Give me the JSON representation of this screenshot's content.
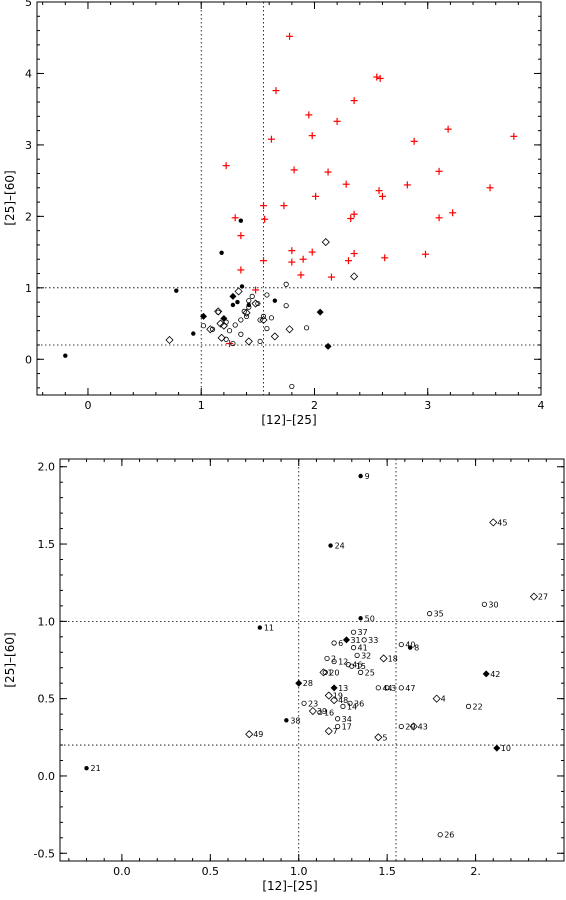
{
  "chart_data": [
    {
      "type": "scatter",
      "title": "",
      "xlabel": "[12]–[25]",
      "ylabel": "[25]–[60]",
      "xlim": [
        -0.45,
        4.0
      ],
      "ylim": [
        -0.5,
        5.0
      ],
      "xticks": [
        0,
        1,
        2,
        3,
        4
      ],
      "yticks": [
        0,
        1,
        2,
        3,
        4,
        5
      ],
      "grid": false,
      "reference_lines": {
        "vertical": [
          1.0,
          1.55
        ],
        "horizontal": [
          1.0,
          0.2
        ]
      },
      "series": [
        {
          "marker": "plus",
          "color": "#ff0000",
          "points": [
            [
              1.78,
              4.52
            ],
            [
              2.55,
              3.95
            ],
            [
              2.58,
              3.93
            ],
            [
              1.66,
              3.76
            ],
            [
              2.35,
              3.62
            ],
            [
              1.95,
              3.42
            ],
            [
              1.98,
              3.13
            ],
            [
              3.18,
              3.22
            ],
            [
              3.76,
              3.12
            ],
            [
              2.2,
              3.33
            ],
            [
              1.62,
              3.08
            ],
            [
              2.88,
              3.05
            ],
            [
              1.82,
              2.65
            ],
            [
              2.28,
              2.45
            ],
            [
              3.1,
              2.63
            ],
            [
              1.22,
              2.71
            ],
            [
              2.12,
              2.62
            ],
            [
              2.82,
              2.44
            ],
            [
              1.55,
              2.15
            ],
            [
              2.57,
              2.36
            ],
            [
              1.73,
              2.15
            ],
            [
              2.01,
              2.28
            ],
            [
              2.6,
              2.28
            ],
            [
              3.55,
              2.4
            ],
            [
              1.3,
              1.98
            ],
            [
              1.56,
              1.96
            ],
            [
              2.35,
              2.03
            ],
            [
              2.32,
              1.97
            ],
            [
              3.1,
              1.98
            ],
            [
              3.22,
              2.05
            ],
            [
              1.35,
              1.73
            ],
            [
              1.8,
              1.52
            ],
            [
              1.98,
              1.5
            ],
            [
              2.35,
              1.48
            ],
            [
              1.9,
              1.4
            ],
            [
              2.62,
              1.42
            ],
            [
              2.3,
              1.38
            ],
            [
              2.98,
              1.47
            ],
            [
              1.55,
              1.38
            ],
            [
              1.8,
              1.36
            ],
            [
              1.35,
              1.25
            ],
            [
              1.88,
              1.18
            ],
            [
              1.48,
              0.97
            ],
            [
              2.15,
              1.15
            ],
            [
              1.25,
              0.22
            ]
          ]
        },
        {
          "marker": "filled-circle",
          "color": "#000000",
          "points": [
            [
              -0.2,
              0.05
            ],
            [
              0.78,
              0.96
            ],
            [
              0.93,
              0.36
            ],
            [
              1.18,
              1.49
            ],
            [
              1.35,
              1.94
            ],
            [
              1.36,
              1.02
            ],
            [
              1.28,
              0.76
            ],
            [
              1.32,
              0.8
            ],
            [
              1.42,
              0.76
            ],
            [
              1.65,
              0.82
            ]
          ]
        },
        {
          "marker": "filled-diamond",
          "color": "#000000",
          "points": [
            [
              1.02,
              0.6
            ],
            [
              1.28,
              0.88
            ],
            [
              1.2,
              0.57
            ],
            [
              2.05,
              0.66
            ],
            [
              2.12,
              0.18
            ]
          ]
        },
        {
          "marker": "open-circle",
          "color": "#000000",
          "points": [
            [
              1.02,
              0.47
            ],
            [
              1.15,
              0.66
            ],
            [
              1.22,
              0.52
            ],
            [
              1.25,
              0.4
            ],
            [
              1.3,
              0.48
            ],
            [
              1.35,
              0.55
            ],
            [
              1.38,
              0.67
            ],
            [
              1.42,
              0.82
            ],
            [
              1.45,
              0.88
            ],
            [
              1.4,
              0.6
            ],
            [
              1.5,
              0.78
            ],
            [
              1.52,
              0.55
            ],
            [
              1.55,
              0.6
            ],
            [
              1.58,
              0.43
            ],
            [
              1.62,
              0.58
            ],
            [
              1.35,
              0.35
            ],
            [
              1.28,
              0.22
            ],
            [
              1.52,
              0.25
            ],
            [
              1.75,
              1.05
            ],
            [
              1.93,
              0.44
            ],
            [
              1.8,
              -0.38
            ],
            [
              1.75,
              0.75
            ],
            [
              1.58,
              0.9
            ],
            [
              1.42,
              0.73
            ],
            [
              1.22,
              0.28
            ],
            [
              1.1,
              0.42
            ]
          ]
        },
        {
          "marker": "open-diamond",
          "color": "#000000",
          "points": [
            [
              0.72,
              0.27
            ],
            [
              1.08,
              0.42
            ],
            [
              1.15,
              0.67
            ],
            [
              1.17,
              0.5
            ],
            [
              1.2,
              0.47
            ],
            [
              1.18,
              0.3
            ],
            [
              1.33,
              0.95
            ],
            [
              1.4,
              0.65
            ],
            [
              1.55,
              0.55
            ],
            [
              1.65,
              0.32
            ],
            [
              1.78,
              0.42
            ],
            [
              2.1,
              1.64
            ],
            [
              2.35,
              1.16
            ],
            [
              1.42,
              0.25
            ],
            [
              1.48,
              0.78
            ]
          ]
        }
      ]
    },
    {
      "type": "scatter",
      "title": "",
      "xlabel": "[12]–[25]",
      "ylabel": "[25]–[60]",
      "xlim": [
        -0.35,
        2.5
      ],
      "ylim": [
        -0.55,
        2.05
      ],
      "xticks": [
        0.0,
        0.5,
        1.0,
        1.5,
        2.0
      ],
      "xtick_labels": [
        "0.0",
        "0.5",
        "1.0",
        "1.5",
        "2."
      ],
      "yticks": [
        -0.5,
        0.0,
        0.5,
        1.0,
        1.5,
        2.0
      ],
      "ytick_labels": [
        "-0.5",
        "0.0",
        "0.5",
        "1.0",
        "1.5",
        "2.0"
      ],
      "grid": false,
      "reference_lines": {
        "vertical": [
          1.0,
          1.55
        ],
        "horizontal": [
          1.0,
          0.2
        ]
      },
      "points": [
        {
          "id": "1",
          "x": 1.14,
          "y": 0.67,
          "marker": "open-diamond"
        },
        {
          "id": "2",
          "x": 1.16,
          "y": 0.76,
          "marker": "open-circle"
        },
        {
          "id": "3",
          "x": 1.5,
          "y": 0.57,
          "marker": "open-circle"
        },
        {
          "id": "4",
          "x": 1.78,
          "y": 0.5,
          "marker": "open-diamond"
        },
        {
          "id": "5",
          "x": 1.45,
          "y": 0.25,
          "marker": "open-diamond"
        },
        {
          "id": "6",
          "x": 1.2,
          "y": 0.86,
          "marker": "open-circle"
        },
        {
          "id": "7",
          "x": 1.17,
          "y": 0.29,
          "marker": "open-diamond"
        },
        {
          "id": "8",
          "x": 1.63,
          "y": 0.83,
          "marker": "filled-circle"
        },
        {
          "id": "9",
          "x": 1.35,
          "y": 1.94,
          "marker": "filled-circle"
        },
        {
          "id": "10",
          "x": 2.12,
          "y": 0.18,
          "marker": "filled-diamond"
        },
        {
          "id": "11",
          "x": 0.78,
          "y": 0.96,
          "marker": "filled-circle"
        },
        {
          "id": "12",
          "x": 1.2,
          "y": 0.74,
          "marker": "open-circle"
        },
        {
          "id": "13",
          "x": 1.2,
          "y": 0.57,
          "marker": "filled-diamond"
        },
        {
          "id": "14",
          "x": 1.25,
          "y": 0.45,
          "marker": "open-circle"
        },
        {
          "id": "15",
          "x": 1.3,
          "y": 0.71,
          "marker": "open-circle"
        },
        {
          "id": "16",
          "x": 1.12,
          "y": 0.41,
          "marker": "open-circle"
        },
        {
          "id": "17",
          "x": 1.22,
          "y": 0.32,
          "marker": "open-circle"
        },
        {
          "id": "18",
          "x": 1.48,
          "y": 0.76,
          "marker": "open-diamond"
        },
        {
          "id": "19",
          "x": 1.17,
          "y": 0.52,
          "marker": "open-diamond"
        },
        {
          "id": "20",
          "x": 1.15,
          "y": 0.67,
          "marker": "open-circle"
        },
        {
          "id": "21",
          "x": -0.2,
          "y": 0.05,
          "marker": "filled-circle"
        },
        {
          "id": "22",
          "x": 1.96,
          "y": 0.45,
          "marker": "open-circle"
        },
        {
          "id": "23",
          "x": 1.03,
          "y": 0.47,
          "marker": "open-circle"
        },
        {
          "id": "24",
          "x": 1.18,
          "y": 1.49,
          "marker": "filled-circle"
        },
        {
          "id": "25",
          "x": 1.35,
          "y": 0.67,
          "marker": "open-circle"
        },
        {
          "id": "26",
          "x": 1.8,
          "y": -0.38,
          "marker": "open-circle"
        },
        {
          "id": "27",
          "x": 2.33,
          "y": 1.16,
          "marker": "open-diamond"
        },
        {
          "id": "28",
          "x": 1.0,
          "y": 0.6,
          "marker": "filled-diamond"
        },
        {
          "id": "29",
          "x": 1.58,
          "y": 0.32,
          "marker": "open-circle"
        },
        {
          "id": "30",
          "x": 2.05,
          "y": 1.11,
          "marker": "open-circle"
        },
        {
          "id": "31",
          "x": 1.27,
          "y": 0.88,
          "marker": "filled-diamond"
        },
        {
          "id": "32",
          "x": 1.33,
          "y": 0.78,
          "marker": "open-circle"
        },
        {
          "id": "33",
          "x": 1.37,
          "y": 0.88,
          "marker": "open-circle"
        },
        {
          "id": "34",
          "x": 1.22,
          "y": 0.37,
          "marker": "open-circle"
        },
        {
          "id": "35",
          "x": 1.74,
          "y": 1.05,
          "marker": "open-circle"
        },
        {
          "id": "36",
          "x": 1.29,
          "y": 0.47,
          "marker": "open-circle"
        },
        {
          "id": "37",
          "x": 1.31,
          "y": 0.93,
          "marker": "open-circle"
        },
        {
          "id": "38",
          "x": 0.93,
          "y": 0.36,
          "marker": "filled-circle"
        },
        {
          "id": "39",
          "x": 1.08,
          "y": 0.42,
          "marker": "open-diamond"
        },
        {
          "id": "40",
          "x": 1.58,
          "y": 0.85,
          "marker": "open-circle"
        },
        {
          "id": "41",
          "x": 1.31,
          "y": 0.83,
          "marker": "open-circle"
        },
        {
          "id": "42",
          "x": 2.06,
          "y": 0.66,
          "marker": "filled-diamond"
        },
        {
          "id": "43",
          "x": 1.65,
          "y": 0.32,
          "marker": "open-diamond"
        },
        {
          "id": "44",
          "x": 1.45,
          "y": 0.57,
          "marker": "open-circle"
        },
        {
          "id": "45",
          "x": 2.1,
          "y": 1.64,
          "marker": "open-diamond"
        },
        {
          "id": "46",
          "x": 1.28,
          "y": 0.72,
          "marker": "open-circle"
        },
        {
          "id": "47",
          "x": 1.58,
          "y": 0.57,
          "marker": "open-circle"
        },
        {
          "id": "48",
          "x": 1.2,
          "y": 0.49,
          "marker": "open-diamond"
        },
        {
          "id": "49",
          "x": 0.72,
          "y": 0.27,
          "marker": "open-diamond"
        },
        {
          "id": "50",
          "x": 1.35,
          "y": 1.02,
          "marker": "filled-circle"
        }
      ]
    }
  ]
}
